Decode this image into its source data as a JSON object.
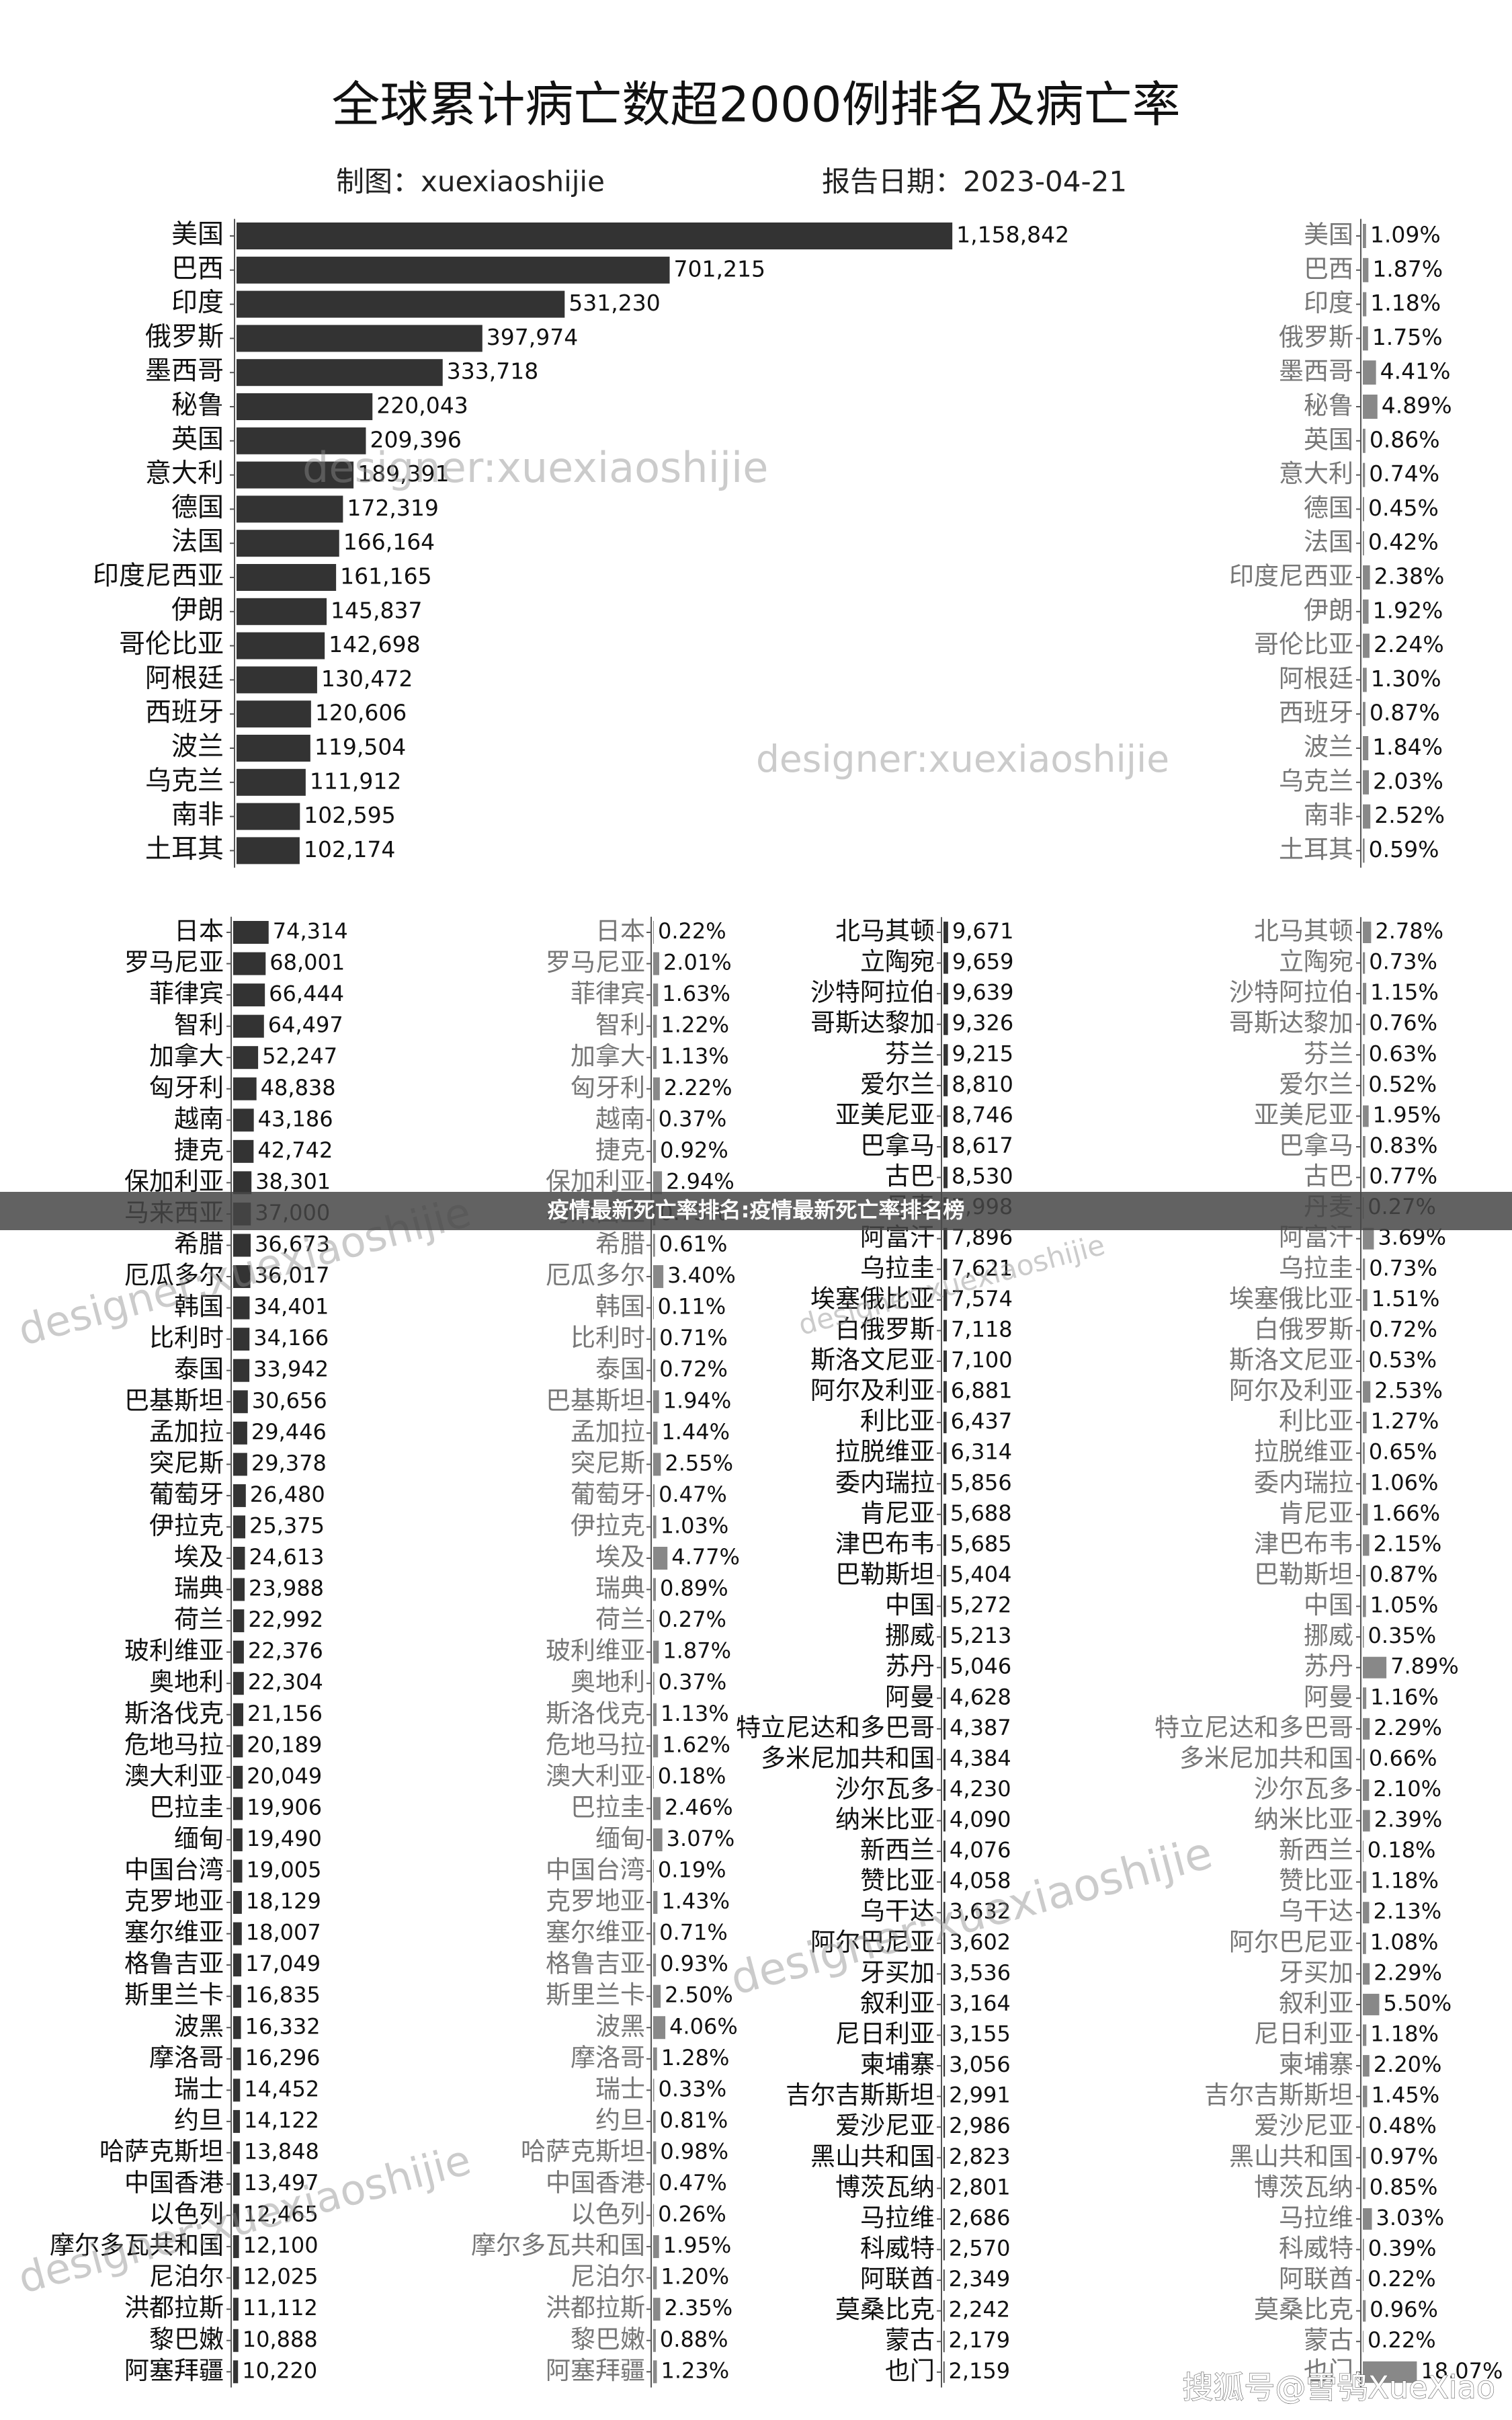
{
  "header": {
    "title": "全球累计病亡数超2000例排名及病亡率",
    "credit": "制图：xuexiaoshijie",
    "date": "报告日期：2023-04-21"
  },
  "chart_data": [
    {
      "type": "bar",
      "orientation": "horizontal",
      "color": "#333333",
      "xlim": [
        0,
        1200000
      ],
      "categories": [
        "美国",
        "巴西",
        "印度",
        "俄罗斯",
        "墨西哥",
        "秘鲁",
        "英国",
        "意大利",
        "德国",
        "法国",
        "印度尼西亚",
        "伊朗",
        "哥伦比亚",
        "阿根廷",
        "西班牙",
        "波兰",
        "乌克兰",
        "南非",
        "土耳其"
      ],
      "values": [
        1158842,
        701215,
        531230,
        397974,
        333718,
        220043,
        209396,
        189391,
        172319,
        166164,
        161165,
        145837,
        142698,
        130472,
        120606,
        119504,
        111912,
        102595,
        102174
      ],
      "value_labels": [
        "1,158,842",
        "701,215",
        "531,230",
        "397,974",
        "333,718",
        "220,043",
        "209,396",
        "189,391",
        "172,319",
        "166,164",
        "161,165",
        "145,837",
        "142,698",
        "130,472",
        "120,606",
        "119,504",
        "111,912",
        "102,595",
        "102,174"
      ]
    },
    {
      "type": "bar",
      "orientation": "horizontal",
      "color": "#888888",
      "xlim": [
        0,
        20
      ],
      "categories": [
        "美国",
        "巴西",
        "印度",
        "俄罗斯",
        "墨西哥",
        "秘鲁",
        "英国",
        "意大利",
        "德国",
        "法国",
        "印度尼西亚",
        "伊朗",
        "哥伦比亚",
        "阿根廷",
        "西班牙",
        "波兰",
        "乌克兰",
        "南非",
        "土耳其"
      ],
      "values": [
        1.09,
        1.87,
        1.18,
        1.75,
        4.41,
        4.89,
        0.86,
        0.74,
        0.45,
        0.42,
        2.38,
        1.92,
        2.24,
        1.3,
        0.87,
        1.84,
        2.03,
        2.52,
        0.59
      ],
      "value_labels": [
        "1.09%",
        "1.87%",
        "1.18%",
        "1.75%",
        "4.41%",
        "4.89%",
        "0.86%",
        "0.74%",
        "0.45%",
        "0.42%",
        "2.38%",
        "1.92%",
        "2.24%",
        "1.30%",
        "0.87%",
        "1.84%",
        "2.03%",
        "2.52%",
        "0.59%"
      ]
    },
    {
      "type": "bar",
      "orientation": "horizontal",
      "color": "#333333",
      "xlim": [
        0,
        100000
      ],
      "categories": [
        "日本",
        "罗马尼亚",
        "菲律宾",
        "智利",
        "加拿大",
        "匈牙利",
        "越南",
        "捷克",
        "保加利亚",
        "马来西亚",
        "希腊",
        "厄瓜多尔",
        "韩国",
        "比利时",
        "泰国",
        "巴基斯坦",
        "孟加拉",
        "突尼斯",
        "葡萄牙",
        "伊拉克",
        "埃及",
        "瑞典",
        "荷兰",
        "玻利维亚",
        "奥地利",
        "斯洛伐克",
        "危地马拉",
        "澳大利亚",
        "巴拉圭",
        "缅甸",
        "中国台湾",
        "克罗地亚",
        "塞尔维亚",
        "格鲁吉亚",
        "斯里兰卡",
        "波黑",
        "摩洛哥",
        "瑞士",
        "约旦",
        "哈萨克斯坦",
        "中国香港",
        "以色列",
        "摩尔多瓦共和国",
        "尼泊尔",
        "洪都拉斯",
        "黎巴嫩",
        "阿塞拜疆"
      ],
      "values": [
        74314,
        68001,
        66444,
        64497,
        52247,
        48838,
        43186,
        42742,
        38301,
        37000,
        36673,
        36017,
        34401,
        34166,
        33942,
        30656,
        29446,
        29378,
        26480,
        25375,
        24613,
        23988,
        22992,
        22376,
        22304,
        21156,
        20189,
        20049,
        19906,
        19490,
        19005,
        18129,
        18007,
        17049,
        16835,
        16332,
        16296,
        14452,
        14122,
        13848,
        13497,
        12465,
        12100,
        12025,
        11112,
        10888,
        10220
      ],
      "value_labels": [
        "74,314",
        "68,001",
        "66,444",
        "64,497",
        "52,247",
        "48,838",
        "43,186",
        "42,742",
        "38,301",
        "37,000",
        "36,673",
        "36,017",
        "34,401",
        "34,166",
        "33,942",
        "30,656",
        "29,446",
        "29,378",
        "26,480",
        "25,375",
        "24,613",
        "23,988",
        "22,992",
        "22,376",
        "22,304",
        "21,156",
        "20,189",
        "20,049",
        "19,906",
        "19,490",
        "19,005",
        "18,129",
        "18,007",
        "17,049",
        "16,835",
        "16,332",
        "16,296",
        "14,452",
        "14,122",
        "13,848",
        "13,497",
        "12,465",
        "12,100",
        "12,025",
        "11,112",
        "10,888",
        "10,220"
      ]
    },
    {
      "type": "bar",
      "orientation": "horizontal",
      "color": "#888888",
      "xlim": [
        0,
        20
      ],
      "categories": [
        "日本",
        "罗马尼亚",
        "菲律宾",
        "智利",
        "加拿大",
        "匈牙利",
        "越南",
        "捷克",
        "保加利亚",
        "马来西亚",
        "希腊",
        "厄瓜多尔",
        "韩国",
        "比利时",
        "泰国",
        "巴基斯坦",
        "孟加拉",
        "突尼斯",
        "葡萄牙",
        "伊拉克",
        "埃及",
        "瑞典",
        "荷兰",
        "玻利维亚",
        "奥地利",
        "斯洛伐克",
        "危地马拉",
        "澳大利亚",
        "巴拉圭",
        "缅甸",
        "中国台湾",
        "克罗地亚",
        "塞尔维亚",
        "格鲁吉亚",
        "斯里兰卡",
        "波黑",
        "摩洛哥",
        "瑞士",
        "约旦",
        "哈萨克斯坦",
        "中国香港",
        "以色列",
        "摩尔多瓦共和国",
        "尼泊尔",
        "洪都拉斯",
        "黎巴嫩",
        "阿塞拜疆"
      ],
      "values": [
        0.22,
        2.01,
        1.63,
        1.22,
        1.13,
        2.22,
        0.37,
        0.92,
        2.94,
        0.73,
        0.61,
        3.4,
        0.11,
        0.71,
        0.72,
        1.94,
        1.44,
        2.55,
        0.47,
        1.03,
        4.77,
        0.89,
        0.27,
        1.87,
        0.37,
        1.13,
        1.62,
        0.18,
        2.46,
        3.07,
        0.19,
        1.43,
        0.71,
        0.93,
        2.5,
        4.06,
        1.28,
        0.33,
        0.81,
        0.98,
        0.47,
        0.26,
        1.95,
        1.2,
        2.35,
        0.88,
        1.23
      ],
      "value_labels": [
        "0.22%",
        "2.01%",
        "1.63%",
        "1.22%",
        "1.13%",
        "2.22%",
        "0.37%",
        "0.92%",
        "2.94%",
        "0.73%",
        "0.61%",
        "3.40%",
        "0.11%",
        "0.71%",
        "0.72%",
        "1.94%",
        "1.44%",
        "2.55%",
        "0.47%",
        "1.03%",
        "4.77%",
        "0.89%",
        "0.27%",
        "1.87%",
        "0.37%",
        "1.13%",
        "1.62%",
        "0.18%",
        "2.46%",
        "3.07%",
        "0.19%",
        "1.43%",
        "0.71%",
        "0.93%",
        "2.50%",
        "4.06%",
        "1.28%",
        "0.33%",
        "0.81%",
        "0.98%",
        "0.47%",
        "0.26%",
        "1.95%",
        "1.20%",
        "2.35%",
        "0.88%",
        "1.23%"
      ]
    },
    {
      "type": "bar",
      "orientation": "horizontal",
      "color": "#333333",
      "xlim": [
        0,
        100000
      ],
      "categories": [
        "北马其顿",
        "立陶宛",
        "沙特阿拉伯",
        "哥斯达黎加",
        "芬兰",
        "爱尔兰",
        "亚美尼亚",
        "巴拿马",
        "古巴",
        "丹麦",
        "阿富汗",
        "乌拉圭",
        "埃塞俄比亚",
        "白俄罗斯",
        "斯洛文尼亚",
        "阿尔及利亚",
        "利比亚",
        "拉脱维亚",
        "委内瑞拉",
        "肯尼亚",
        "津巴布韦",
        "巴勒斯坦",
        "中国",
        "挪威",
        "苏丹",
        "阿曼",
        "特立尼达和多巴哥",
        "多米尼加共和国",
        "沙尔瓦多",
        "纳米比亚",
        "新西兰",
        "赞比亚",
        "乌干达",
        "阿尔巴尼亚",
        "牙买加",
        "叙利亚",
        "尼日利亚",
        "柬埔寨",
        "吉尔吉斯斯坦",
        "爱沙尼亚",
        "黑山共和国",
        "博茨瓦纳",
        "马拉维",
        "科威特",
        "阿联酋",
        "莫桑比克",
        "蒙古",
        "也门"
      ],
      "values": [
        9671,
        9659,
        9639,
        9326,
        9215,
        8810,
        8746,
        8617,
        8530,
        7998,
        7896,
        7621,
        7574,
        7118,
        7100,
        6881,
        6437,
        6314,
        5856,
        5688,
        5685,
        5404,
        5272,
        5213,
        5046,
        4628,
        4387,
        4384,
        4230,
        4090,
        4076,
        4058,
        3632,
        3602,
        3536,
        3164,
        3155,
        3056,
        2991,
        2986,
        2823,
        2801,
        2686,
        2570,
        2349,
        2242,
        2179,
        2159
      ],
      "value_labels": [
        "9,671",
        "9,659",
        "9,639",
        "9,326",
        "9,215",
        "8,810",
        "8,746",
        "8,617",
        "8,530",
        "7,998",
        "7,896",
        "7,621",
        "7,574",
        "7,118",
        "7,100",
        "6,881",
        "6,437",
        "6,314",
        "5,856",
        "5,688",
        "5,685",
        "5,404",
        "5,272",
        "5,213",
        "5,046",
        "4,628",
        "4,387",
        "4,384",
        "4,230",
        "4,090",
        "4,076",
        "4,058",
        "3,632",
        "3,602",
        "3,536",
        "3,164",
        "3,155",
        "3,056",
        "2,991",
        "2,986",
        "2,823",
        "2,801",
        "2,686",
        "2,570",
        "2,349",
        "2,242",
        "2,179",
        "2,159"
      ]
    },
    {
      "type": "bar",
      "orientation": "horizontal",
      "color": "#888888",
      "xlim": [
        0,
        20
      ],
      "categories": [
        "北马其顿",
        "立陶宛",
        "沙特阿拉伯",
        "哥斯达黎加",
        "芬兰",
        "爱尔兰",
        "亚美尼亚",
        "巴拿马",
        "古巴",
        "丹麦",
        "阿富汗",
        "乌拉圭",
        "埃塞俄比亚",
        "白俄罗斯",
        "斯洛文尼亚",
        "阿尔及利亚",
        "利比亚",
        "拉脱维亚",
        "委内瑞拉",
        "肯尼亚",
        "津巴布韦",
        "巴勒斯坦",
        "中国",
        "挪威",
        "苏丹",
        "阿曼",
        "特立尼达和多巴哥",
        "多米尼加共和国",
        "沙尔瓦多",
        "纳米比亚",
        "新西兰",
        "赞比亚",
        "乌干达",
        "阿尔巴尼亚",
        "牙买加",
        "叙利亚",
        "尼日利亚",
        "柬埔寨",
        "吉尔吉斯斯坦",
        "爱沙尼亚",
        "黑山共和国",
        "博茨瓦纳",
        "马拉维",
        "科威特",
        "阿联酋",
        "莫桑比克",
        "蒙古",
        "也门"
      ],
      "values": [
        2.78,
        0.73,
        1.15,
        0.76,
        0.63,
        0.52,
        1.95,
        0.83,
        0.77,
        0.27,
        3.69,
        0.73,
        1.51,
        0.72,
        0.53,
        2.53,
        1.27,
        0.65,
        1.06,
        1.66,
        2.15,
        0.87,
        1.05,
        0.35,
        7.89,
        1.16,
        2.29,
        0.66,
        2.1,
        2.39,
        0.18,
        1.18,
        2.13,
        1.08,
        2.29,
        5.5,
        1.18,
        2.2,
        1.45,
        0.48,
        0.97,
        0.85,
        3.03,
        0.39,
        0.22,
        0.96,
        0.22,
        18.07
      ],
      "value_labels": [
        "2.78%",
        "0.73%",
        "1.15%",
        "0.76%",
        "0.63%",
        "0.52%",
        "1.95%",
        "0.83%",
        "0.77%",
        "0.27%",
        "3.69%",
        "0.73%",
        "1.51%",
        "0.72%",
        "0.53%",
        "2.53%",
        "1.27%",
        "0.65%",
        "1.06%",
        "1.66%",
        "2.15%",
        "0.87%",
        "1.05%",
        "0.35%",
        "7.89%",
        "1.16%",
        "2.29%",
        "0.66%",
        "2.10%",
        "2.39%",
        "0.18%",
        "1.18%",
        "2.13%",
        "1.08%",
        "2.29%",
        "5.50%",
        "1.18%",
        "2.20%",
        "1.45%",
        "0.48%",
        "0.97%",
        "0.85%",
        "3.03%",
        "0.39%",
        "0.22%",
        "0.96%",
        "0.22%",
        "18.07%"
      ]
    }
  ],
  "banner": "疫情最新死亡率排名:疫情最新死亡率排名榜",
  "watermark": "designer:xuexiaoshijie",
  "footer": "搜狐号@雪鸮XueXiao"
}
